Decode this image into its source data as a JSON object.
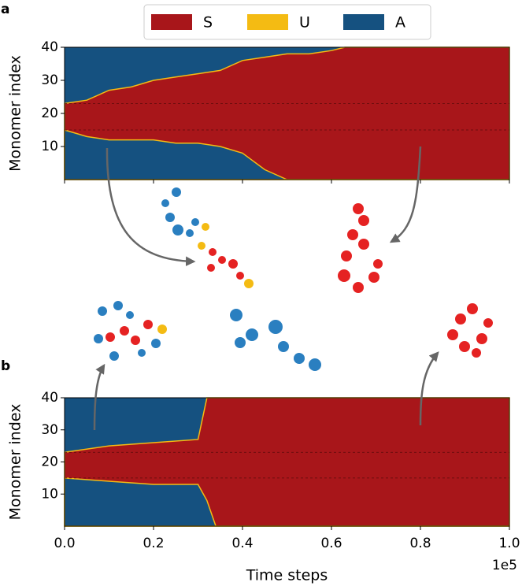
{
  "chart_data": {
    "type": "state-heatmap",
    "legend": [
      {
        "name": "S",
        "color": "#a8161a"
      },
      {
        "name": "U",
        "color": "#f4bb13"
      },
      {
        "name": "A",
        "color": "#155180"
      }
    ],
    "xlabel": "Time steps",
    "x_exponent": "1e5",
    "xlim": [
      0,
      1
    ],
    "xticks": [
      {
        "value": 0,
        "label": "0.0"
      },
      0.2,
      0.4,
      0.6,
      0.8,
      {
        "value": 1,
        "label": "1.0"
      }
    ],
    "hlines": [
      15,
      23
    ],
    "panels": [
      {
        "label": "a",
        "ylabel": "Monomer index",
        "ylim": [
          0,
          40
        ],
        "yticks": [
          10,
          20,
          30,
          40
        ],
        "x": [
          0,
          0.05,
          0.1,
          0.15,
          0.2,
          0.25,
          0.3,
          0.35,
          0.4,
          0.45,
          0.5,
          0.55,
          0.6,
          0.63,
          1.0
        ],
        "upper": [
          23,
          24,
          27,
          28,
          30,
          31,
          32,
          33,
          36,
          37,
          38,
          38,
          39,
          40,
          40
        ],
        "lower": [
          15,
          13,
          12,
          12,
          12,
          11,
          11,
          10,
          8,
          3,
          0,
          0,
          0,
          0,
          0
        ]
      },
      {
        "label": "b",
        "ylabel": "Monomer index",
        "ylim": [
          0,
          40
        ],
        "yticks": [
          10,
          20,
          30,
          40
        ],
        "x": [
          0,
          0.1,
          0.2,
          0.3,
          0.32,
          0.34,
          1.0
        ],
        "upper": [
          23,
          25,
          26,
          27,
          40,
          40,
          40
        ],
        "lower": [
          15,
          14,
          13,
          13,
          8,
          0,
          0
        ]
      }
    ]
  }
}
